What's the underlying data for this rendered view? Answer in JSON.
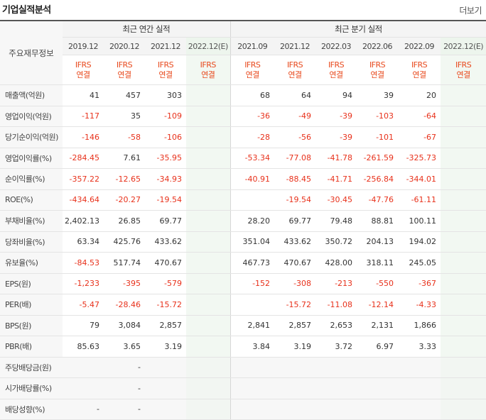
{
  "header": {
    "title": "기업실적분석",
    "more_label": "더보기"
  },
  "table": {
    "stub_label": "주요재무정보",
    "annual_label": "최근 연간 실적",
    "quarter_label": "최근 분기 실적",
    "annual_periods": [
      "2019.12",
      "2020.12",
      "2021.12",
      "2022.12(E)"
    ],
    "quarter_periods": [
      "2021.09",
      "2021.12",
      "2022.03",
      "2022.06",
      "2022.09",
      "2022.12(E)"
    ],
    "basis": [
      "IFRS",
      "연결"
    ],
    "rows": [
      {
        "label": "매출액(억원)",
        "annual": [
          "41",
          "457",
          "303",
          ""
        ],
        "quarter": [
          "68",
          "64",
          "94",
          "39",
          "20",
          ""
        ]
      },
      {
        "label": "영업이익(억원)",
        "annual": [
          "-117",
          "35",
          "-109",
          ""
        ],
        "quarter": [
          "-36",
          "-49",
          "-39",
          "-103",
          "-64",
          ""
        ]
      },
      {
        "label": "당기순이익(억원)",
        "annual": [
          "-146",
          "-58",
          "-106",
          ""
        ],
        "quarter": [
          "-28",
          "-56",
          "-39",
          "-101",
          "-67",
          ""
        ]
      },
      {
        "label": "영업이익률(%)",
        "annual": [
          "-284.45",
          "7.61",
          "-35.95",
          ""
        ],
        "quarter": [
          "-53.34",
          "-77.08",
          "-41.78",
          "-261.59",
          "-325.73",
          ""
        ]
      },
      {
        "label": "순이익률(%)",
        "annual": [
          "-357.22",
          "-12.65",
          "-34.93",
          ""
        ],
        "quarter": [
          "-40.91",
          "-88.45",
          "-41.71",
          "-256.84",
          "-344.01",
          ""
        ]
      },
      {
        "label": "ROE(%)",
        "annual": [
          "-434.64",
          "-20.27",
          "-19.54",
          ""
        ],
        "quarter": [
          "",
          "-19.54",
          "-30.45",
          "-47.76",
          "-61.11",
          ""
        ]
      },
      {
        "label": "부채비율(%)",
        "annual": [
          "2,402.13",
          "26.85",
          "69.77",
          ""
        ],
        "quarter": [
          "28.20",
          "69.77",
          "79.48",
          "88.81",
          "100.11",
          ""
        ]
      },
      {
        "label": "당좌비율(%)",
        "annual": [
          "63.34",
          "425.76",
          "433.62",
          ""
        ],
        "quarter": [
          "351.04",
          "433.62",
          "350.72",
          "204.13",
          "194.02",
          ""
        ]
      },
      {
        "label": "유보율(%)",
        "annual": [
          "-84.53",
          "517.74",
          "470.67",
          ""
        ],
        "quarter": [
          "467.73",
          "470.67",
          "428.00",
          "318.11",
          "245.05",
          ""
        ]
      },
      {
        "label": "EPS(원)",
        "annual": [
          "-1,233",
          "-395",
          "-579",
          ""
        ],
        "quarter": [
          "-152",
          "-308",
          "-213",
          "-550",
          "-367",
          ""
        ]
      },
      {
        "label": "PER(배)",
        "annual": [
          "-5.47",
          "-28.46",
          "-15.72",
          ""
        ],
        "quarter": [
          "",
          "-15.72",
          "-11.08",
          "-12.14",
          "-4.33",
          ""
        ]
      },
      {
        "label": "BPS(원)",
        "annual": [
          "79",
          "3,084",
          "2,857",
          ""
        ],
        "quarter": [
          "2,841",
          "2,857",
          "2,653",
          "2,131",
          "1,866",
          ""
        ]
      },
      {
        "label": "PBR(배)",
        "annual": [
          "85.63",
          "3.65",
          "3.19",
          ""
        ],
        "quarter": [
          "3.84",
          "3.19",
          "3.72",
          "6.97",
          "3.33",
          ""
        ]
      },
      {
        "label": "주당배당금(원)",
        "annual": [
          "",
          "-",
          "",
          ""
        ],
        "quarter": [
          "",
          "",
          "",
          "",
          "",
          ""
        ],
        "empty": true
      },
      {
        "label": "시가배당률(%)",
        "annual": [
          "",
          "-",
          "",
          ""
        ],
        "quarter": [
          "",
          "",
          "",
          "",
          "",
          ""
        ],
        "empty": true
      },
      {
        "label": "배당성향(%)",
        "annual": [
          "-",
          "-",
          "",
          ""
        ],
        "quarter": [
          "",
          "",
          "",
          "",
          "",
          ""
        ],
        "empty": true
      }
    ]
  }
}
